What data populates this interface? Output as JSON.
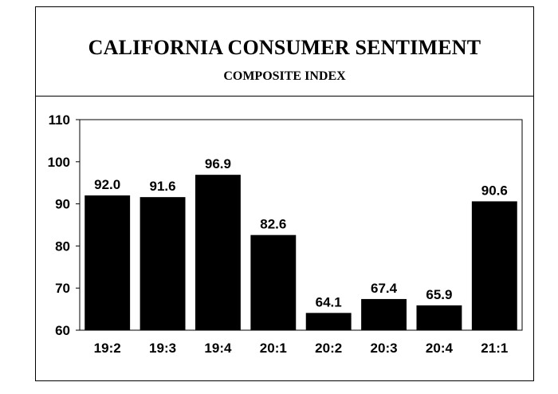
{
  "chart_data": {
    "type": "bar",
    "title": "CALIFORNIA CONSUMER SENTIMENT",
    "subtitle": "COMPOSITE INDEX",
    "categories": [
      "19:2",
      "19:3",
      "19:4",
      "20:1",
      "20:2",
      "20:3",
      "20:4",
      "21:1"
    ],
    "values": [
      92.0,
      91.6,
      96.9,
      82.6,
      64.1,
      67.4,
      65.9,
      90.6
    ],
    "data_labels": [
      "92.0",
      "91.6",
      "96.9",
      "82.6",
      "64.1",
      "67.4",
      "65.9",
      "90.6"
    ],
    "ylim": [
      60,
      110
    ],
    "yticks": [
      60,
      70,
      80,
      90,
      100,
      110
    ],
    "xlabel": "",
    "ylabel": "",
    "grid": false,
    "bar_color": "#000000"
  }
}
